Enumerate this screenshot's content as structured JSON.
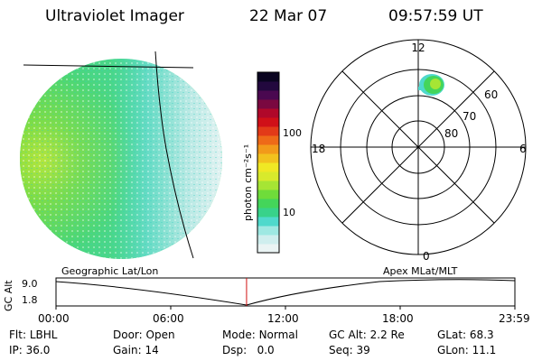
{
  "header": {
    "instrument": "Ultraviolet Imager",
    "date": "22 Mar 07",
    "time": "09:57:59 UT"
  },
  "colorbar": {
    "unit_label": "photon cm⁻²s⁻¹",
    "ticks": [
      "100",
      "10"
    ],
    "colors": [
      "#eaf4f4",
      "#cfeeee",
      "#9ee8e2",
      "#4fd9cc",
      "#38d28a",
      "#44d55a",
      "#6fdc3a",
      "#a6e534",
      "#d8ea2c",
      "#f0e824",
      "#f2c21e",
      "#f29a1a",
      "#ee6a18",
      "#e23a18",
      "#d01018",
      "#b0082a",
      "#7a0840",
      "#4a0850",
      "#22083e",
      "#0a0420"
    ],
    "image_colors": {
      "blue": "#4fd9cc",
      "green": "#44d55a",
      "yellow_green": "#a6e534",
      "light": "#dff0f0"
    }
  },
  "polar": {
    "mlt_labels": [
      "12",
      "18",
      "6",
      "0"
    ],
    "lat_labels": [
      "60",
      "70",
      "80"
    ]
  },
  "timeline": {
    "y_axis_label": "GC Alt",
    "y_ticks": [
      "9.0",
      "1.8"
    ],
    "left_title": "Geographic Lat/Lon",
    "right_title": "Apex MLat/MLT",
    "x_ticks": [
      "00:00",
      "06:00",
      "12:00",
      "18:00",
      "23:59"
    ],
    "current_time_hours": 9.966,
    "cursor_color": "#d01010"
  },
  "footer": {
    "row1": [
      {
        "label": "Flt:",
        "value": "LBHL"
      },
      {
        "label": "Door:",
        "value": "Open"
      },
      {
        "label": "Mode:",
        "value": "Normal"
      },
      {
        "label": "GC Alt:",
        "value": "2.2 Re"
      },
      {
        "label": "GLat:",
        "value": "68.3"
      }
    ],
    "row2": [
      {
        "label": "IP:",
        "value": "36.0"
      },
      {
        "label": "Gain:",
        "value": "14"
      },
      {
        "label": "Dsp:",
        "value": "0.0"
      },
      {
        "label": "Seq:",
        "value": "39"
      },
      {
        "label": "GLon:",
        "value": "11.1"
      }
    ]
  }
}
